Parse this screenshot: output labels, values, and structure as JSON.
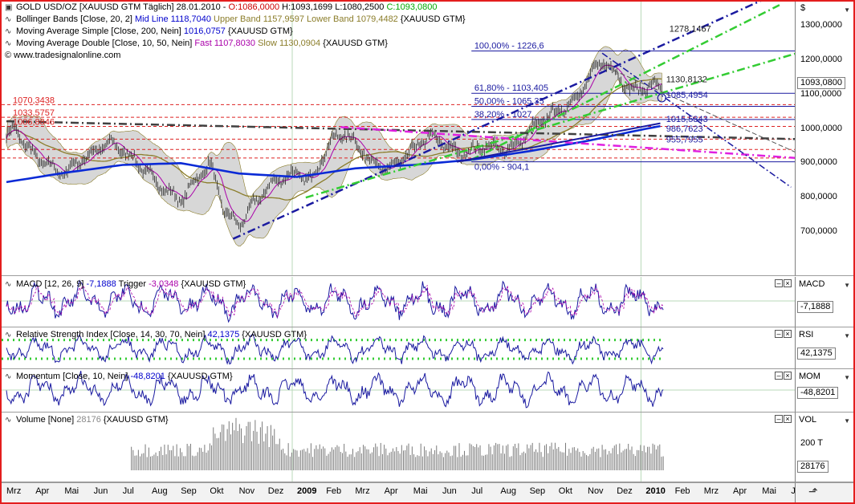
{
  "main_pane": {
    "legend": [
      {
        "icon": "square-icon",
        "parts": [
          {
            "t": "GOLD USD/OZ [XAUUSD GTM  Täglich]  28.01.2010 - ",
            "c": "#000000"
          },
          {
            "t": "O:1086,0000",
            "c": "#cc0000"
          },
          {
            "t": " H:1093,1699 L:1080,2500 ",
            "c": "#000000"
          },
          {
            "t": "C:1093,0800",
            "c": "#00aa00"
          }
        ]
      },
      {
        "icon": "wave-icon",
        "parts": [
          {
            "t": "Bollinger Bands [Close, 20, 2] ",
            "c": "#000000"
          },
          {
            "t": "Mid Line 1118,7040",
            "c": "#0000cc"
          },
          {
            "t": " Upper Band 1157,9597 Lower Band 1079,4482",
            "c": "#8b7d2a"
          },
          {
            "t": " {XAUUSD GTM}",
            "c": "#000000"
          }
        ]
      },
      {
        "icon": "wave-icon",
        "parts": [
          {
            "t": "Moving Average Simple [Close, 200, Nein] ",
            "c": "#000000"
          },
          {
            "t": "1016,0757",
            "c": "#0000cc"
          },
          {
            "t": " {XAUUSD GTM}",
            "c": "#000000"
          }
        ]
      },
      {
        "icon": "wave-icon",
        "parts": [
          {
            "t": "Moving Average Double [Close, 10, 50, Nein] ",
            "c": "#000000"
          },
          {
            "t": "Fast 1107,8030",
            "c": "#aa00aa"
          },
          {
            "t": " Slow 1130,0904",
            "c": "#8b7d2a"
          },
          {
            "t": " {XAUUSD GTM}",
            "c": "#000000"
          }
        ]
      },
      {
        "icon": "copyright-icon",
        "parts": [
          {
            "t": "© www.tradesignalonline.com",
            "c": "#000000"
          }
        ]
      }
    ],
    "axis_currency": "$",
    "current_value": "1093,0800",
    "annotations": {
      "red_levels": [
        "1070,3438",
        "1033,5757",
        "1006,8846"
      ],
      "fib": [
        "100,00% - 1226,6",
        "61,80% - 1103,405",
        "50,00% - 1065,35",
        "38,20% - 1027,",
        "0,00% - 904,1"
      ],
      "right_labels": [
        "1278,1467",
        "1130,8132",
        "1085,4954",
        "1015,5343",
        "986,7623",
        "955,7955"
      ]
    }
  },
  "macd_pane": {
    "legend": [
      {
        "t": "MACD [12, 26, 9] ",
        "c": "#000000"
      },
      {
        "t": "-7,1888",
        "c": "#0000cc"
      },
      {
        "t": " Trigger ",
        "c": "#000000"
      },
      {
        "t": "-3,0348",
        "c": "#aa00aa"
      },
      {
        "t": " {XAUUSD GTM}",
        "c": "#000000"
      }
    ],
    "axis_label": "MACD",
    "current_value": "-7,1888"
  },
  "rsi_pane": {
    "legend": [
      {
        "t": "Relative Strength Index [Close, 14, 30, 70, Nein] ",
        "c": "#000000"
      },
      {
        "t": "42,1375",
        "c": "#0000cc"
      },
      {
        "t": " {XAUUSD GTM}",
        "c": "#000000"
      }
    ],
    "axis_label": "RSI",
    "current_value": "42,1375"
  },
  "mom_pane": {
    "legend": [
      {
        "t": "Momentum [Close, 10, Nein] ",
        "c": "#000000"
      },
      {
        "t": "-48,8201",
        "c": "#0000cc"
      },
      {
        "t": " {XAUUSD GTM}",
        "c": "#000000"
      }
    ],
    "axis_label": "MOM",
    "current_value": "-48,8201"
  },
  "vol_pane": {
    "legend": [
      {
        "t": "Volume [None] ",
        "c": "#000000"
      },
      {
        "t": "28176",
        "c": "#888888"
      },
      {
        "t": " {XAUUSD GTM}",
        "c": "#000000"
      }
    ],
    "axis_label": "VOL",
    "tick": "200 T",
    "current_value": "28176"
  },
  "time_axis": {
    "labels": [
      "Mrz",
      "Apr",
      "Mai",
      "Jun",
      "Jul",
      "Aug",
      "Sep",
      "Okt",
      "Nov",
      "Dez",
      "2009",
      "Feb",
      "Mrz",
      "Apr",
      "Mai",
      "Jun",
      "Jul",
      "Aug",
      "Sep",
      "Okt",
      "Nov",
      "Dez",
      "2010",
      "Feb",
      "Mrz",
      "Apr",
      "Mai",
      "Jun"
    ],
    "bold": [
      "2009",
      "2010"
    ]
  },
  "colors": {
    "frame": "#e31e1e",
    "sma200": "#0a2ad6",
    "fast_ma": "#aa00aa",
    "slow_ma": "#8b7d2a",
    "band_fill": "#c9c9c9",
    "trend_blue": "#1a1aa0",
    "trend_green": "#33cc33",
    "trend_magenta": "#e020e0",
    "trend_gray": "#404040",
    "red_level": "#dd2222"
  },
  "chart_data": [
    {
      "type": "line",
      "title": "GOLD USD/OZ [XAUUSD GTM  Täglich]",
      "ylabel": "$",
      "y_ticks": [
        700,
        800,
        900,
        1000,
        1100,
        1200,
        1300
      ],
      "y_tick_labels": [
        "700,0000",
        "800,0000",
        "900,0000",
        "1000,0000",
        "1100,0000",
        "1200,0000",
        "1300,0000"
      ],
      "ylim": [
        630,
        1360
      ],
      "x_ticks": [
        "Mrz",
        "Apr",
        "Mai",
        "Jun",
        "Jul",
        "Aug",
        "Sep",
        "Okt",
        "Nov",
        "Dez",
        "2009",
        "Feb",
        "Mrz",
        "Apr",
        "Mai",
        "Jun",
        "Jul",
        "Aug",
        "Sep",
        "Okt",
        "Nov",
        "Dez",
        "2010",
        "Feb",
        "Mrz",
        "Apr",
        "Mai",
        "Jun"
      ],
      "series": [
        {
          "name": "GOLD USD/OZ",
          "x_month": [
            0,
            0.3,
            0.6,
            1,
            1.5,
            2,
            2.5,
            3,
            3.5,
            4,
            4.5,
            5,
            5.5,
            6,
            6.5,
            7,
            7.5,
            8,
            8.5,
            9,
            9.5,
            10,
            10.5,
            11,
            11.5,
            12,
            12.5,
            13,
            13.5,
            14,
            14.5,
            15,
            15.5,
            16,
            16.5,
            17,
            17.5,
            18,
            18.5,
            19,
            19.5,
            20,
            20.5,
            21,
            21.5,
            22,
            22.5,
            23
          ],
          "values": [
            980,
            1000,
            960,
            920,
            890,
            870,
            905,
            930,
            960,
            940,
            900,
            860,
            820,
            790,
            850,
            900,
            760,
            720,
            780,
            830,
            860,
            870,
            850,
            940,
            990,
            960,
            910,
            880,
            900,
            940,
            980,
            960,
            930,
            935,
            950,
            940,
            950,
            990,
            1030,
            1050,
            1080,
            1140,
            1200,
            1160,
            1110,
            1120,
            1130,
            1093
          ]
        },
        {
          "name": "Moving Average Simple [Close, 200, Nein]",
          "x_month": [
            0,
            2,
            4,
            6,
            8,
            10,
            12,
            14,
            16,
            18,
            20,
            22,
            23
          ],
          "values": [
            845,
            872,
            895,
            900,
            870,
            860,
            885,
            895,
            910,
            935,
            965,
            1000,
            1016
          ]
        }
      ]
    },
    {
      "type": "line",
      "title": "MACD [12, 26, 9]",
      "series": [
        {
          "name": "MACD",
          "last": -7.1888
        },
        {
          "name": "Trigger",
          "last": -3.0348
        }
      ]
    },
    {
      "type": "line",
      "title": "Relative Strength Index [Close, 14, 30, 70, Nein]",
      "levels": [
        30,
        70
      ],
      "series": [
        {
          "name": "RSI",
          "last": 42.1375
        }
      ]
    },
    {
      "type": "line",
      "title": "Momentum [Close, 10, Nein]",
      "series": [
        {
          "name": "MOM",
          "last": -48.8201
        }
      ]
    },
    {
      "type": "bar",
      "title": "Volume [None]",
      "y_ticks": [
        "200 T"
      ],
      "series": [
        {
          "name": "Volume",
          "last": 28176
        }
      ]
    }
  ]
}
